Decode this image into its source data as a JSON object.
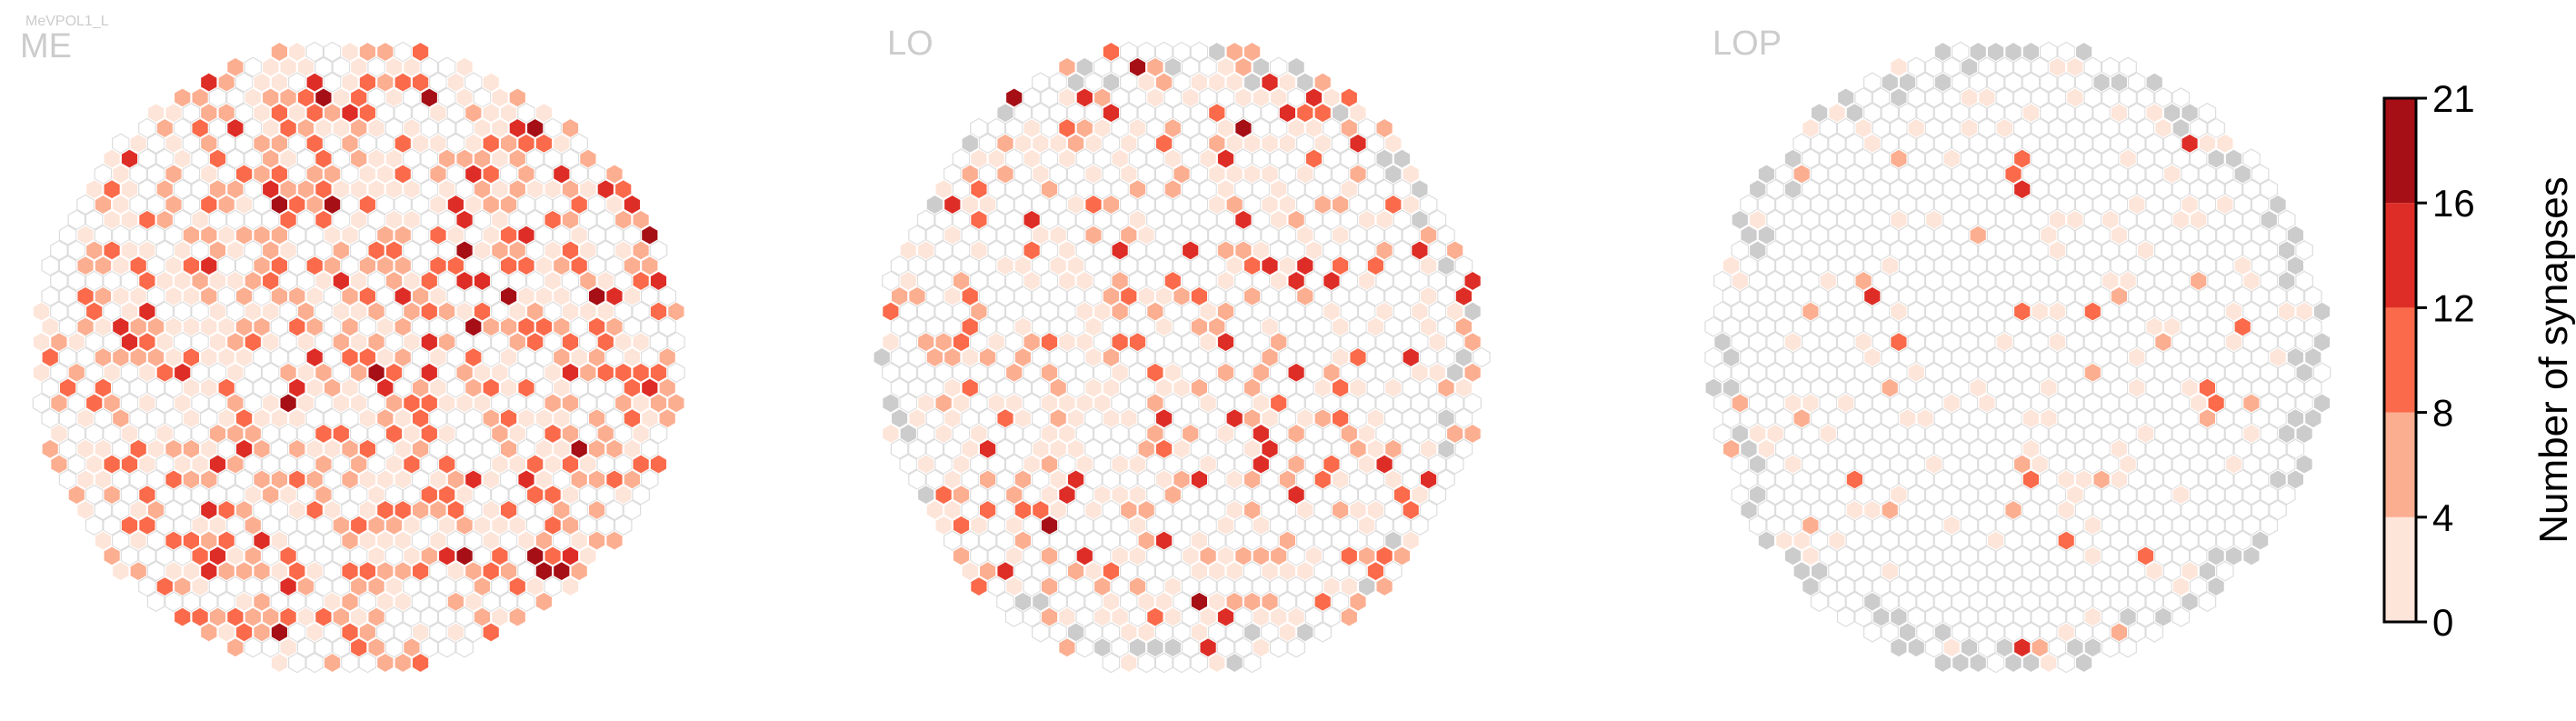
{
  "cell_label": "MeVPOL1_L",
  "colors": {
    "no_data": "#cccccc",
    "empty_stroke": "#dddddd",
    "bins": [
      "#fee5d9",
      "#fcae91",
      "#fb6a4a",
      "#de2d26",
      "#a50f15"
    ]
  },
  "chart_data": [
    {
      "type": "heatmap",
      "title": "ME",
      "bin_fractions": [
        0.25,
        0.2,
        0.11,
        0.04,
        0.015
      ],
      "no_data_fraction": 0.0,
      "grid": {
        "rows": 37,
        "cols": 29
      }
    },
    {
      "type": "heatmap",
      "title": "LO",
      "bin_fractions": [
        0.2,
        0.12,
        0.07,
        0.03,
        0.008
      ],
      "no_data_fraction": 0.03,
      "grid": {
        "rows": 37,
        "cols": 29
      }
    },
    {
      "type": "heatmap",
      "title": "LOP",
      "bin_fractions": [
        0.11,
        0.02,
        0.008,
        0.006,
        0.0
      ],
      "no_data_fraction": 0.06,
      "grid": {
        "rows": 37,
        "cols": 29
      }
    }
  ],
  "colorbar": {
    "title": "Number of synapses",
    "ticks": [
      "0",
      "4",
      "8",
      "12",
      "16",
      "21"
    ]
  }
}
